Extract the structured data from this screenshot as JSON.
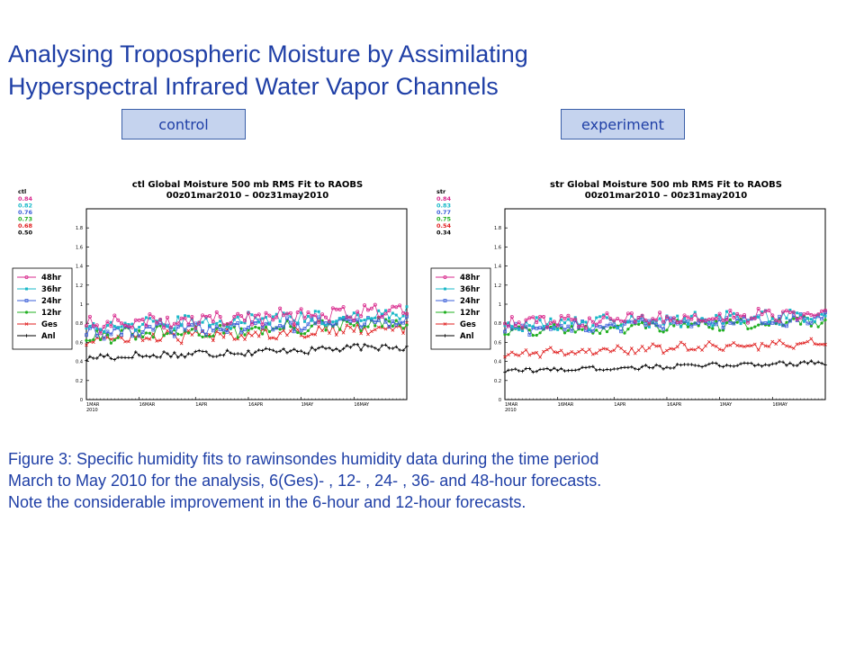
{
  "slide": {
    "title_line1": "Analysing Tropospheric Moisture by Assimilating",
    "title_line2": "Hyperspectral Infrared Water Vapor Channels",
    "label_control": "control",
    "label_experiment": "experiment",
    "caption_line1": "Figure 3: Specific humidity fits to rawinsondes humidity data during the time period",
    "caption_line2": "March to May 2010 for the analysis, 6(Ges)- , 12- , 24- , 36-  and 48-hour forecasts.",
    "caption_line3": "Note the considerable improvement in the 6-hour and 12-hour forecasts."
  },
  "chart_data": [
    {
      "type": "line",
      "title": "ctl Global Moisture 500 mb RMS Fit to RAOBS",
      "subtitle": "00z01mar2010 – 00z31may2010",
      "exp_label": "ctl",
      "x_ticks": [
        "1MAR\n2010",
        "16MAR",
        "1APR",
        "16APR",
        "1MAY",
        "16MAY"
      ],
      "x_tick_days": [
        0,
        15,
        31,
        46,
        61,
        76
      ],
      "ndays": 92,
      "ylim": [
        0,
        2
      ],
      "y_ticks": [
        "0",
        "0.2",
        "0.4",
        "0.6",
        "0.8",
        "1",
        "1.2",
        "1.4",
        "1.6",
        "1.8"
      ],
      "series": [
        {
          "name": "48hr",
          "color": "#d8288c",
          "mean": 0.84,
          "start": 0.78,
          "end": 0.93,
          "amp": 0.07
        },
        {
          "name": "36hr",
          "color": "#19b8c8",
          "mean": 0.82,
          "start": 0.76,
          "end": 0.9,
          "amp": 0.065
        },
        {
          "name": "24hr",
          "color": "#3b5fd9",
          "mean": 0.76,
          "start": 0.7,
          "end": 0.84,
          "amp": 0.06
        },
        {
          "name": "12hr",
          "color": "#22b022",
          "mean": 0.73,
          "start": 0.66,
          "end": 0.8,
          "amp": 0.06
        },
        {
          "name": "Ges",
          "color": "#e02020",
          "mean": 0.68,
          "start": 0.62,
          "end": 0.76,
          "amp": 0.055
        },
        {
          "name": "Anl",
          "color": "#000000",
          "mean": 0.5,
          "start": 0.44,
          "end": 0.56,
          "amp": 0.035
        }
      ]
    },
    {
      "type": "line",
      "title": "str Global Moisture 500 mb RMS Fit to RAOBS",
      "subtitle": "00z01mar2010 – 00z31may2010",
      "exp_label": "str",
      "x_ticks": [
        "1MAR\n2010",
        "16MAR",
        "1APR",
        "16APR",
        "1MAY",
        "16MAY"
      ],
      "x_tick_days": [
        0,
        15,
        31,
        46,
        61,
        76
      ],
      "ndays": 92,
      "ylim": [
        0,
        2
      ],
      "y_ticks": [
        "0",
        "0.2",
        "0.4",
        "0.6",
        "0.8",
        "1",
        "1.2",
        "1.4",
        "1.6",
        "1.8"
      ],
      "series": [
        {
          "name": "48hr",
          "color": "#d8288c",
          "mean": 0.84,
          "start": 0.8,
          "end": 0.9,
          "amp": 0.065
        },
        {
          "name": "36hr",
          "color": "#19b8c8",
          "mean": 0.83,
          "start": 0.79,
          "end": 0.88,
          "amp": 0.06
        },
        {
          "name": "24hr",
          "color": "#3b5fd9",
          "mean": 0.77,
          "start": 0.74,
          "end": 0.85,
          "amp": 0.055
        },
        {
          "name": "12hr",
          "color": "#22b022",
          "mean": 0.75,
          "start": 0.72,
          "end": 0.82,
          "amp": 0.05
        },
        {
          "name": "Ges",
          "color": "#e02020",
          "mean": 0.54,
          "start": 0.48,
          "end": 0.6,
          "amp": 0.04
        },
        {
          "name": "Anl",
          "color": "#000000",
          "mean": 0.34,
          "start": 0.3,
          "end": 0.39,
          "amp": 0.02
        }
      ]
    }
  ]
}
